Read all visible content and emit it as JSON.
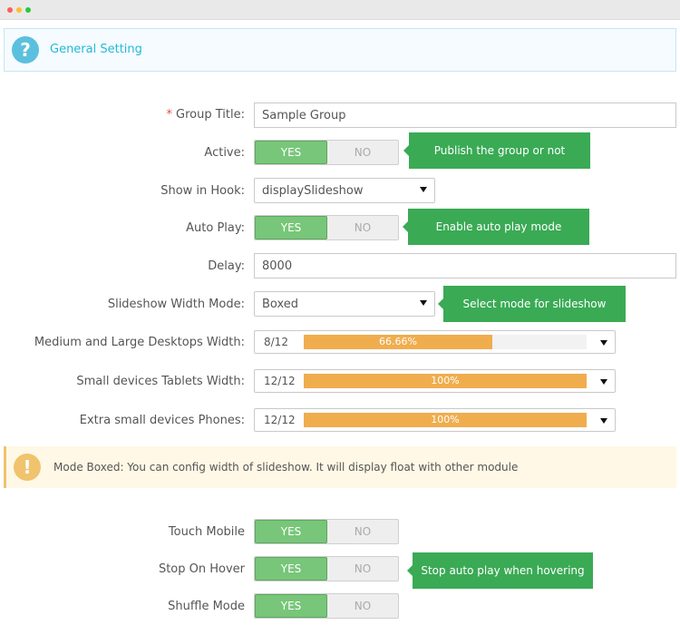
{
  "colors": {
    "accent": "#25b9d7",
    "switch_on": "#78c679",
    "tooltip": "#3aaa55",
    "progress": "#f0ad4e",
    "warning": "#f0c36d",
    "required": "#e74c3c"
  },
  "window": {
    "dot_colors": [
      "#ff5f57",
      "#ffbd2e",
      "#28c840"
    ]
  },
  "panel": {
    "title": "General Setting",
    "icon": "question-icon",
    "icon_glyph": "?"
  },
  "form": {
    "group_title": {
      "label": "Group Title:",
      "required_mark": "*",
      "value": "Sample Group"
    },
    "active": {
      "label": "Active:",
      "yes": "YES",
      "no": "NO",
      "tooltip": "Publish the group or not"
    },
    "show_in_hook": {
      "label": "Show in Hook:",
      "value": "displaySlideshow"
    },
    "auto_play": {
      "label": "Auto Play:",
      "yes": "YES",
      "no": "NO",
      "tooltip": "Enable auto play mode"
    },
    "delay": {
      "label": "Delay:",
      "value": "8000"
    },
    "width_mode": {
      "label": "Slideshow Width Mode:",
      "value": "Boxed",
      "tooltip": "Select mode for slideshow"
    },
    "desktop_width": {
      "label": "Medium and Large Desktops Width:",
      "value": "8/12",
      "percent_label": "66.66%",
      "fraction": 0.6666
    },
    "tablet_width": {
      "label": "Small devices Tablets Width:",
      "value": "12/12",
      "percent_label": "100%",
      "fraction": 1.0
    },
    "phone_width": {
      "label": "Extra small devices Phones:",
      "value": "12/12",
      "percent_label": "100%",
      "fraction": 1.0
    },
    "alert": {
      "icon": "exclamation-icon",
      "icon_glyph": "!",
      "text": "Mode Boxed: You can config width of slideshow. It will display float with other module"
    },
    "touch_mobile": {
      "label": "Touch Mobile",
      "yes": "YES",
      "no": "NO"
    },
    "stop_on_hover": {
      "label": "Stop On Hover",
      "yes": "YES",
      "no": "NO",
      "tooltip": "Stop auto play when hovering"
    },
    "shuffle_mode": {
      "label": "Shuffle Mode",
      "yes": "YES",
      "no": "NO"
    }
  }
}
